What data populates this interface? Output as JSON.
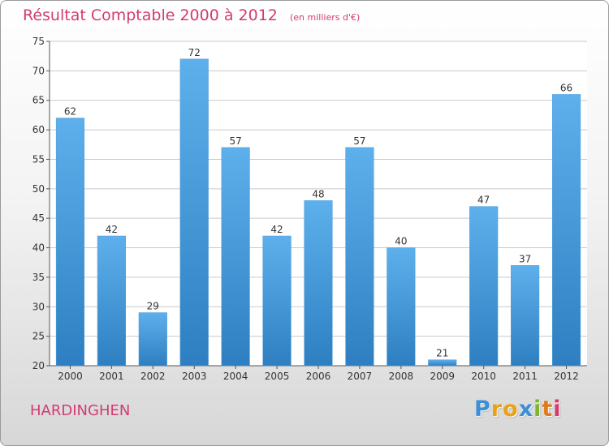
{
  "chart_data": {
    "type": "bar",
    "title": "Résultat Comptable 2000 à 2012",
    "unit_note": "(en milliers d'€)",
    "categories": [
      "2000",
      "2001",
      "2002",
      "2003",
      "2004",
      "2005",
      "2006",
      "2007",
      "2008",
      "2009",
      "2010",
      "2011",
      "2012"
    ],
    "values": [
      62,
      42,
      29,
      72,
      57,
      42,
      48,
      57,
      40,
      21,
      47,
      37,
      66
    ],
    "ylim": [
      20,
      75
    ],
    "yticks": [
      20,
      25,
      30,
      35,
      40,
      45,
      50,
      55,
      60,
      65,
      70,
      75
    ],
    "grid": "horizontal",
    "xlabel": "",
    "ylabel": ""
  },
  "place_name": "HARDINGHEN",
  "logo": {
    "letters": [
      "P",
      "r",
      "o",
      "x",
      "i",
      "t",
      "i"
    ],
    "colors": [
      "#3c8fd6",
      "#e8a21a",
      "#e8a21a",
      "#3c8fd6",
      "#7db52f",
      "#e07a1a",
      "#d53a6f"
    ]
  },
  "colors": {
    "bar_light": "#5eb0ec",
    "bar_dark": "#2d7fc1",
    "title": "#d23b74",
    "grid": "#c9c9c9",
    "axis_text": "#333333"
  }
}
